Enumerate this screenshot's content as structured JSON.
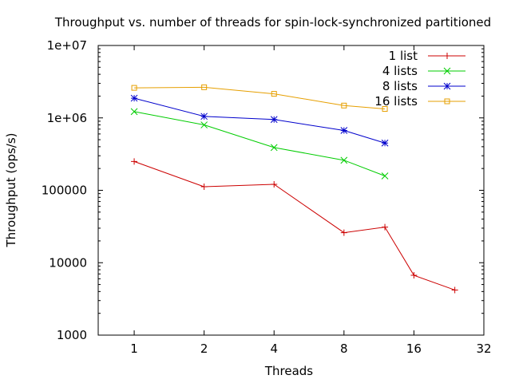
{
  "chart_data": {
    "type": "line",
    "title": "Throughput vs. number of threads for spin-lock-synchronized partitioned",
    "xlabel": "Threads",
    "ylabel": "Throughput (ops/s)",
    "xscale": "log2",
    "yscale": "log10",
    "xlim": [
      0.7,
      32
    ],
    "ylim": [
      1000,
      10000000
    ],
    "x_ticks": [
      1,
      2,
      4,
      8,
      16,
      32
    ],
    "x_tick_labels": [
      "1",
      "2",
      "4",
      "8",
      "16",
      "32"
    ],
    "y_ticks": [
      1000,
      10000,
      100000,
      1000000,
      10000000
    ],
    "y_tick_labels": [
      "1000",
      "10000",
      "100000",
      "1e+06",
      "1e+07"
    ],
    "grid": false,
    "legend_position": "top-right",
    "series": [
      {
        "name": "1 list",
        "color": "#cc0000",
        "marker": "plus",
        "x": [
          1,
          2,
          4,
          8,
          12,
          16,
          24
        ],
        "y": [
          250000,
          112000,
          121000,
          26000,
          31000,
          6700,
          4200
        ]
      },
      {
        "name": "4 lists",
        "color": "#00cc00",
        "marker": "cross",
        "x": [
          1,
          2,
          4,
          8,
          12
        ],
        "y": [
          1220000,
          800000,
          390000,
          260000,
          158000
        ]
      },
      {
        "name": "8 lists",
        "color": "#0000cc",
        "marker": "star",
        "x": [
          1,
          2,
          4,
          8,
          12
        ],
        "y": [
          1870000,
          1050000,
          950000,
          670000,
          450000
        ]
      },
      {
        "name": "16 lists",
        "color": "#e69f00",
        "marker": "square",
        "x": [
          1,
          2,
          4,
          8,
          12
        ],
        "y": [
          2600000,
          2650000,
          2150000,
          1480000,
          1330000
        ]
      }
    ]
  }
}
